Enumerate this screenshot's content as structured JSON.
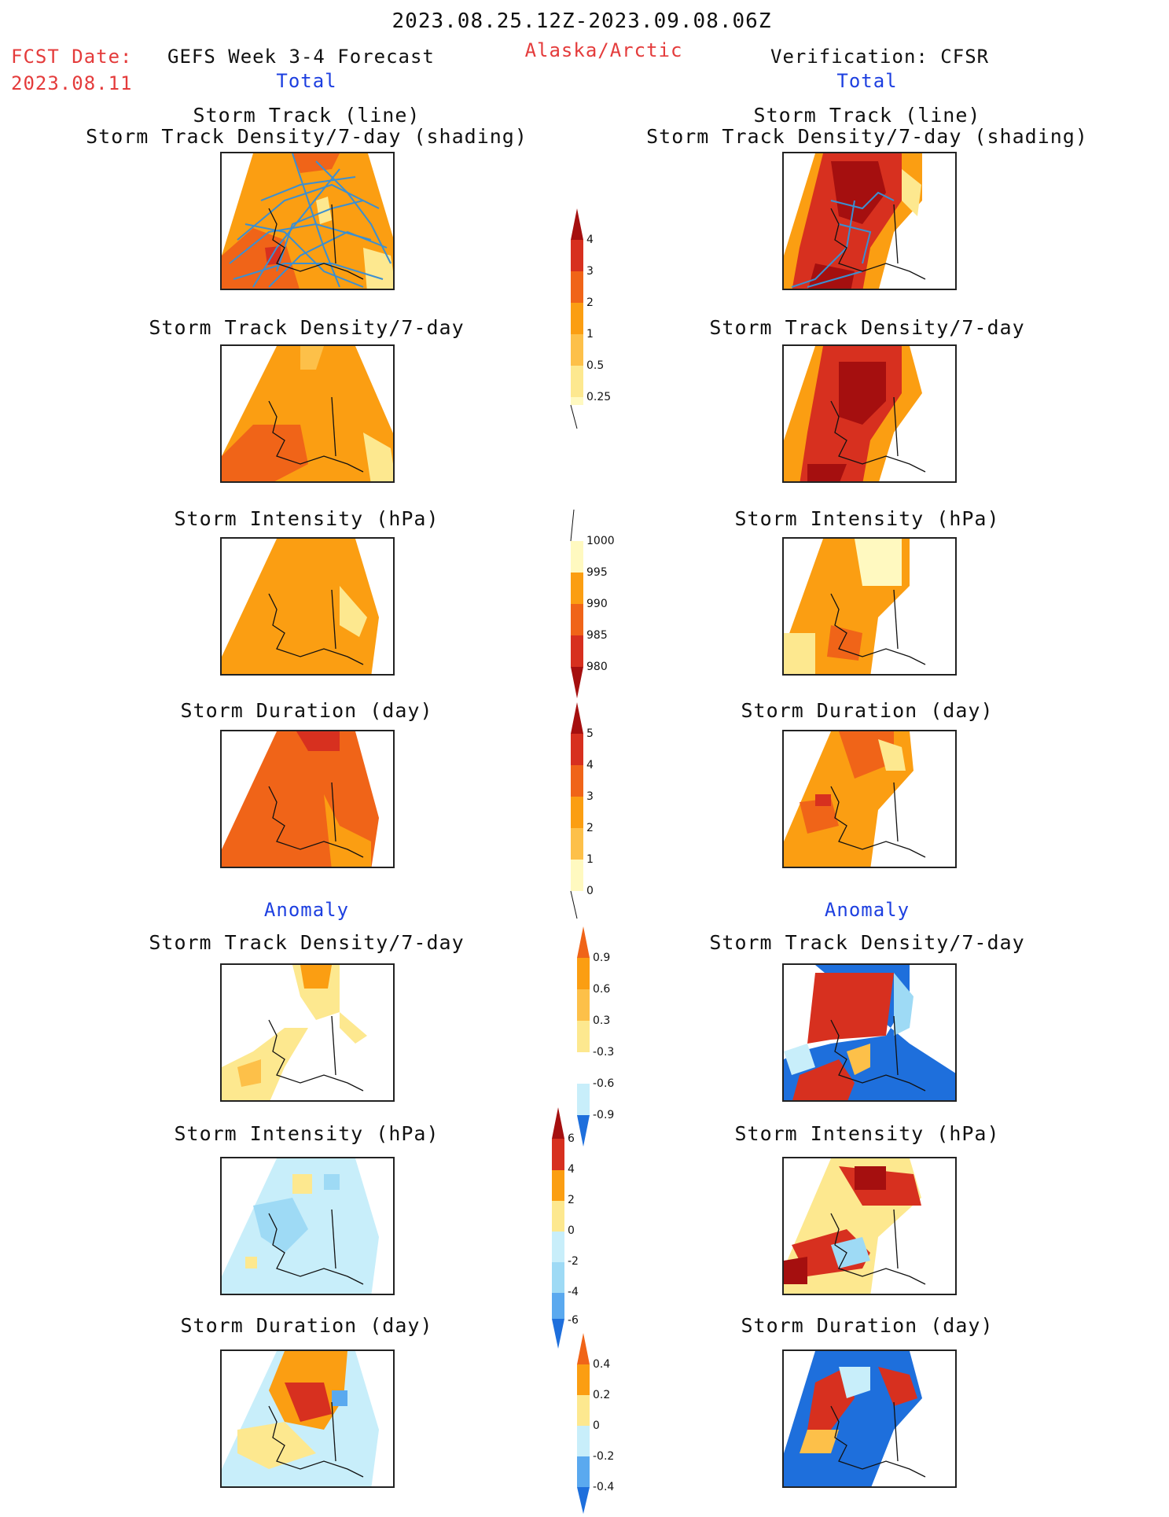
{
  "header": {
    "date_range": "2023.08.25.12Z-2023.09.08.06Z",
    "fcst_label": "FCST Date:",
    "fcst_date": "2023.08.11",
    "forecast_title": "GEFS Week 3-4 Forecast",
    "region": "Alaska/Arctic",
    "verification": "Verification: CFSR",
    "left_section": "Total",
    "right_section": "Total",
    "anomaly_left": "Anomaly",
    "anomaly_right": "Anomaly"
  },
  "titles": {
    "track": "Storm Track (line)\nStorm Track Density/7-day (shading)",
    "density": "Storm Track Density/7-day",
    "intensity": "Storm Intensity (hPa)",
    "duration": "Storm Duration (day)"
  },
  "colorbars": {
    "density": {
      "labels": [
        "4",
        "3",
        "2",
        "1",
        "0.5",
        "0.25"
      ]
    },
    "intensity": {
      "labels": [
        "1000",
        "995",
        "990",
        "985",
        "980"
      ]
    },
    "duration": {
      "labels": [
        "5",
        "4",
        "3",
        "2",
        "1",
        "0"
      ]
    },
    "density_anom": {
      "labels": [
        "0.9",
        "0.6",
        "0.3",
        "-0.3",
        "-0.6",
        "-0.9"
      ]
    },
    "intensity_anom": {
      "labels": [
        "6",
        "4",
        "2",
        "0",
        "-2",
        "-4",
        "-6"
      ]
    },
    "duration_anom": {
      "labels": [
        "0.4",
        "0.2",
        "0",
        "-0.2",
        "-0.4"
      ]
    }
  },
  "palette": {
    "darkred": "#a50f0f",
    "red": "#d7301f",
    "orangered": "#f06418",
    "orange": "#fb9e12",
    "lightorange": "#fdc049",
    "yellow": "#fde88f",
    "paleyellow": "#fff9c0",
    "paleblue": "#c8eefa",
    "lightblue": "#9edaf5",
    "midblue": "#5aa9ef",
    "blue": "#1e6fdc",
    "track_line": "#3b8fd1"
  }
}
